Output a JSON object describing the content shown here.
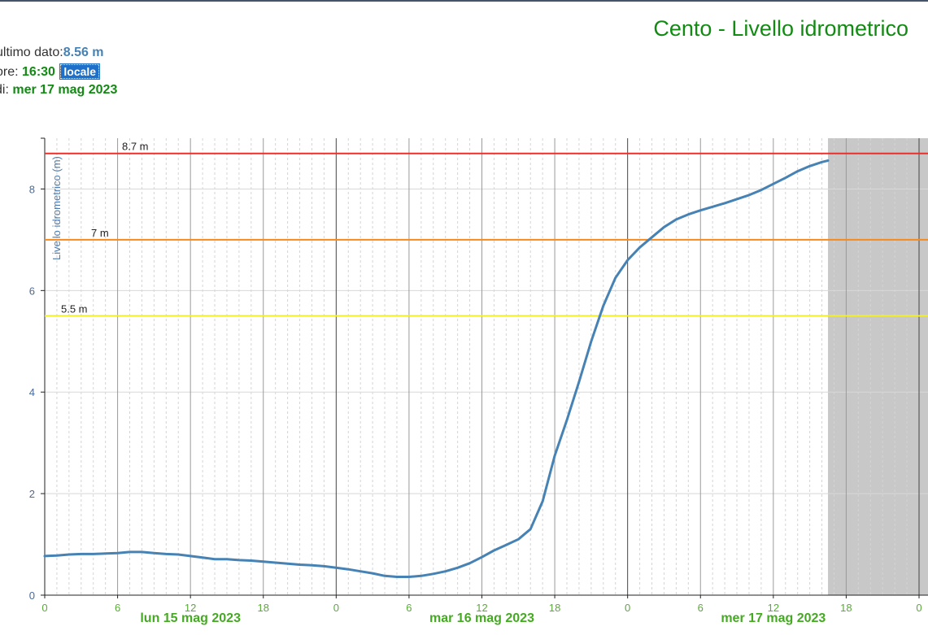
{
  "header": {
    "title": "Cento - Livello idrometrico",
    "last_value_label": "ultimo dato:",
    "last_value": "8.56 m",
    "time_label": "ore:",
    "time_value": "16:30",
    "time_badge": "locale",
    "date_label": "di:",
    "date_value": "mer 17 mag 2023"
  },
  "chart_data": {
    "type": "line",
    "title": "Cento - Livello idrometrico",
    "ylabel": "Livello idrometrico (m)",
    "ylim": [
      0,
      9
    ],
    "y_ticks": [
      "0",
      "2",
      "4",
      "6",
      "8"
    ],
    "x_hours_range": [
      0,
      72
    ],
    "x_ticks": [
      "0",
      "6",
      "12",
      "18",
      "0",
      "6",
      "12",
      "18",
      "0",
      "6",
      "12",
      "18",
      "0"
    ],
    "day_labels": [
      "lun 15 mag 2023",
      "mar 16 mag 2023",
      "mer 17 mag 2023"
    ],
    "forecast_shade_from_hour": 64.5,
    "grid": true,
    "thresholds": [
      {
        "label": "8.7 m",
        "value": 8.7,
        "color": "#e8312a"
      },
      {
        "label": "7 m",
        "value": 7.0,
        "color": "#f58a1f"
      },
      {
        "label": "5.5 m",
        "value": 5.5,
        "color": "#f2ee2a"
      }
    ],
    "series": [
      {
        "color": "#4682b4",
        "x": [
          0,
          1,
          2,
          3,
          4,
          5,
          6,
          7,
          8,
          9,
          10,
          11,
          12,
          13,
          14,
          15,
          16,
          17,
          18,
          19,
          20,
          21,
          22,
          23,
          24,
          25,
          26,
          27,
          28,
          29,
          30,
          31,
          32,
          33,
          34,
          35,
          36,
          37,
          38,
          39,
          40,
          41,
          42,
          43,
          44,
          45,
          46,
          47,
          48,
          49,
          50,
          51,
          52,
          53,
          54,
          55,
          56,
          57,
          58,
          59,
          60,
          61,
          62,
          63,
          64,
          64.5
        ],
        "y": [
          0.77,
          0.78,
          0.8,
          0.81,
          0.81,
          0.82,
          0.83,
          0.85,
          0.85,
          0.83,
          0.81,
          0.8,
          0.77,
          0.74,
          0.71,
          0.71,
          0.69,
          0.68,
          0.66,
          0.64,
          0.62,
          0.6,
          0.59,
          0.57,
          0.54,
          0.51,
          0.47,
          0.43,
          0.38,
          0.36,
          0.36,
          0.38,
          0.42,
          0.47,
          0.54,
          0.63,
          0.75,
          0.88,
          0.99,
          1.1,
          1.3,
          1.85,
          2.75,
          3.45,
          4.2,
          5.0,
          5.7,
          6.25,
          6.6,
          6.85,
          7.05,
          7.25,
          7.4,
          7.5,
          7.58,
          7.65,
          7.72,
          7.8,
          7.88,
          7.98,
          8.1,
          8.22,
          8.35,
          8.45,
          8.53,
          8.56
        ]
      }
    ]
  }
}
